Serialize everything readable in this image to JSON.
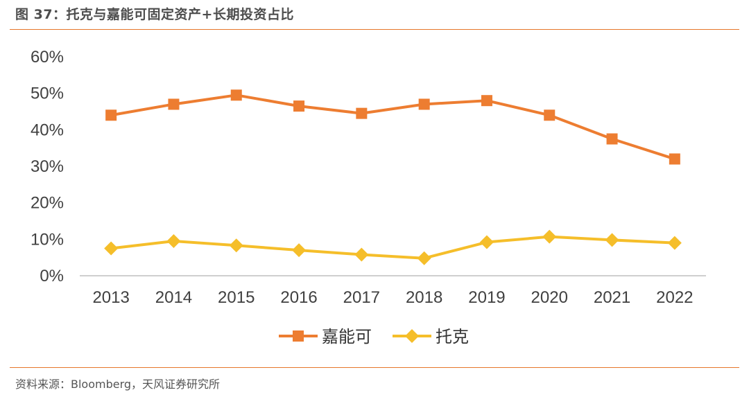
{
  "header": {
    "title": "图 37：托克与嘉能可固定资产+长期投资占比"
  },
  "footer": {
    "source": "资料来源：Bloomberg，天风证券研究所"
  },
  "colors": {
    "accent": "#E6762A",
    "series1": "#ED7D31",
    "series2": "#F5BE2A"
  },
  "chart_data": {
    "type": "line",
    "title": "",
    "xlabel": "",
    "ylabel": "",
    "categories": [
      "2013",
      "2014",
      "2015",
      "2016",
      "2017",
      "2018",
      "2019",
      "2020",
      "2021",
      "2022"
    ],
    "y_ticks": [
      "0%",
      "10%",
      "20%",
      "30%",
      "40%",
      "50%",
      "60%"
    ],
    "ylim": [
      0,
      60
    ],
    "grid": false,
    "legend_position": "bottom",
    "series": [
      {
        "name": "嘉能可",
        "marker": "square",
        "color": "#ED7D31",
        "values": [
          44,
          47,
          49.5,
          46.5,
          44.5,
          47,
          48,
          44,
          37.5,
          32
        ]
      },
      {
        "name": "托克",
        "marker": "diamond",
        "color": "#F5BE2A",
        "values": [
          7.5,
          9.5,
          8.3,
          7,
          5.8,
          4.8,
          9.2,
          10.7,
          9.8,
          9
        ]
      }
    ]
  }
}
